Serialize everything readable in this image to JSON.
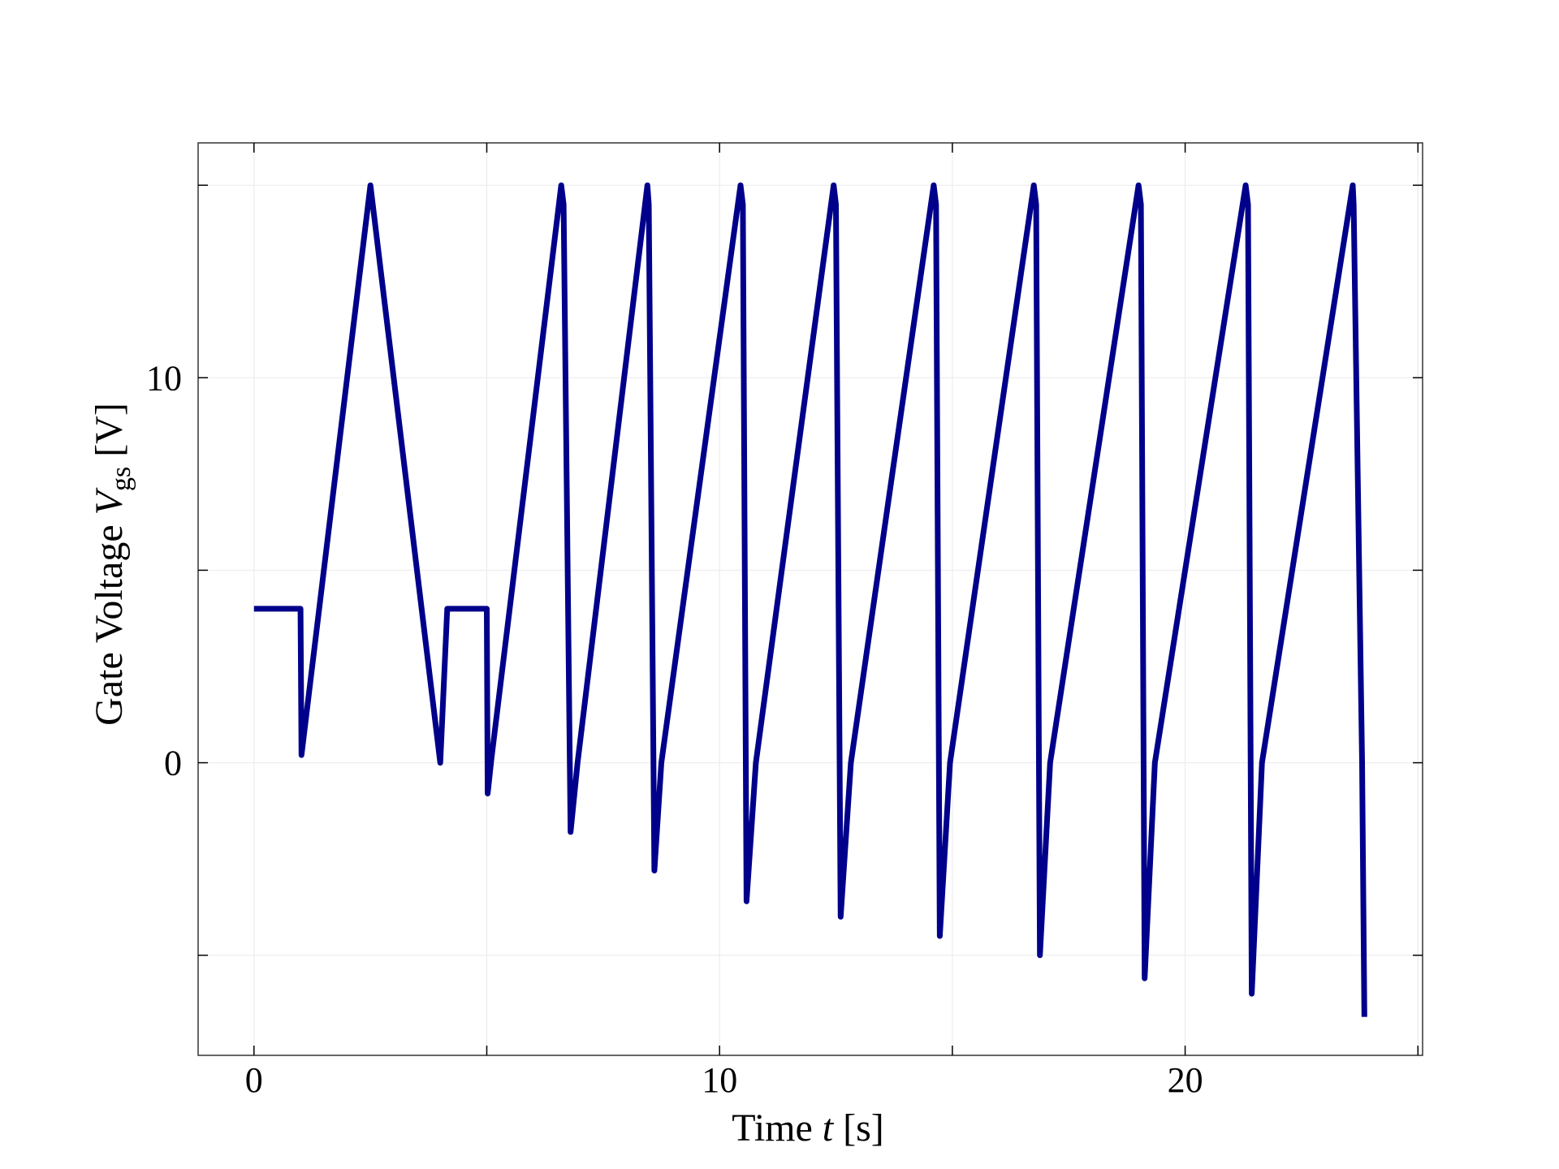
{
  "chart_data": {
    "type": "line",
    "xlabel": {
      "prefix": "Time ",
      "var": "t",
      "unit": " [s]"
    },
    "ylabel": {
      "prefix": "Gate Voltage ",
      "var": "V",
      "sub": "gs",
      "unit": " [V]"
    },
    "xlim": [
      -1.2,
      25.1
    ],
    "ylim": [
      -7.6,
      16.1
    ],
    "x_ticks": [
      0,
      5,
      10,
      15,
      20,
      25
    ],
    "x_tick_labels": [
      "0",
      "",
      "10",
      "",
      "20",
      ""
    ],
    "y_ticks": [
      -5,
      0,
      5,
      10,
      15
    ],
    "y_tick_labels": [
      "",
      "0",
      "",
      "10",
      ""
    ],
    "grid": true,
    "line_color": "#00008B",
    "series": [
      {
        "x": [
          0,
          1.0,
          1.02,
          2.5,
          4.0,
          4.15,
          5.0,
          5.02,
          5.1,
          6.6,
          6.65,
          6.8,
          6.95,
          8.45,
          8.48,
          8.6,
          8.75,
          10.45,
          10.5,
          10.58,
          10.78,
          12.45,
          12.5,
          12.6,
          12.82,
          14.6,
          14.65,
          14.73,
          14.95,
          16.75,
          16.8,
          16.88,
          17.1,
          19.0,
          19.05,
          19.13,
          19.35,
          21.3,
          21.35,
          21.43,
          21.65,
          23.6,
          23.62,
          23.8,
          23.85
        ],
        "y": [
          4.0,
          4.0,
          0.2,
          15.0,
          0.0,
          4.0,
          4.0,
          -0.8,
          0.1,
          15.0,
          14.5,
          -1.8,
          0.0,
          15.0,
          14.5,
          -2.8,
          0.0,
          15.0,
          14.5,
          -3.6,
          0.0,
          15.0,
          14.5,
          -4.0,
          0.0,
          15.0,
          14.5,
          -4.5,
          0.0,
          15.0,
          14.5,
          -5.0,
          0.0,
          15.0,
          14.5,
          -5.6,
          0.0,
          15.0,
          14.5,
          -6.0,
          0.0,
          15.0,
          14.5,
          0.0,
          -6.6
        ]
      }
    ]
  }
}
